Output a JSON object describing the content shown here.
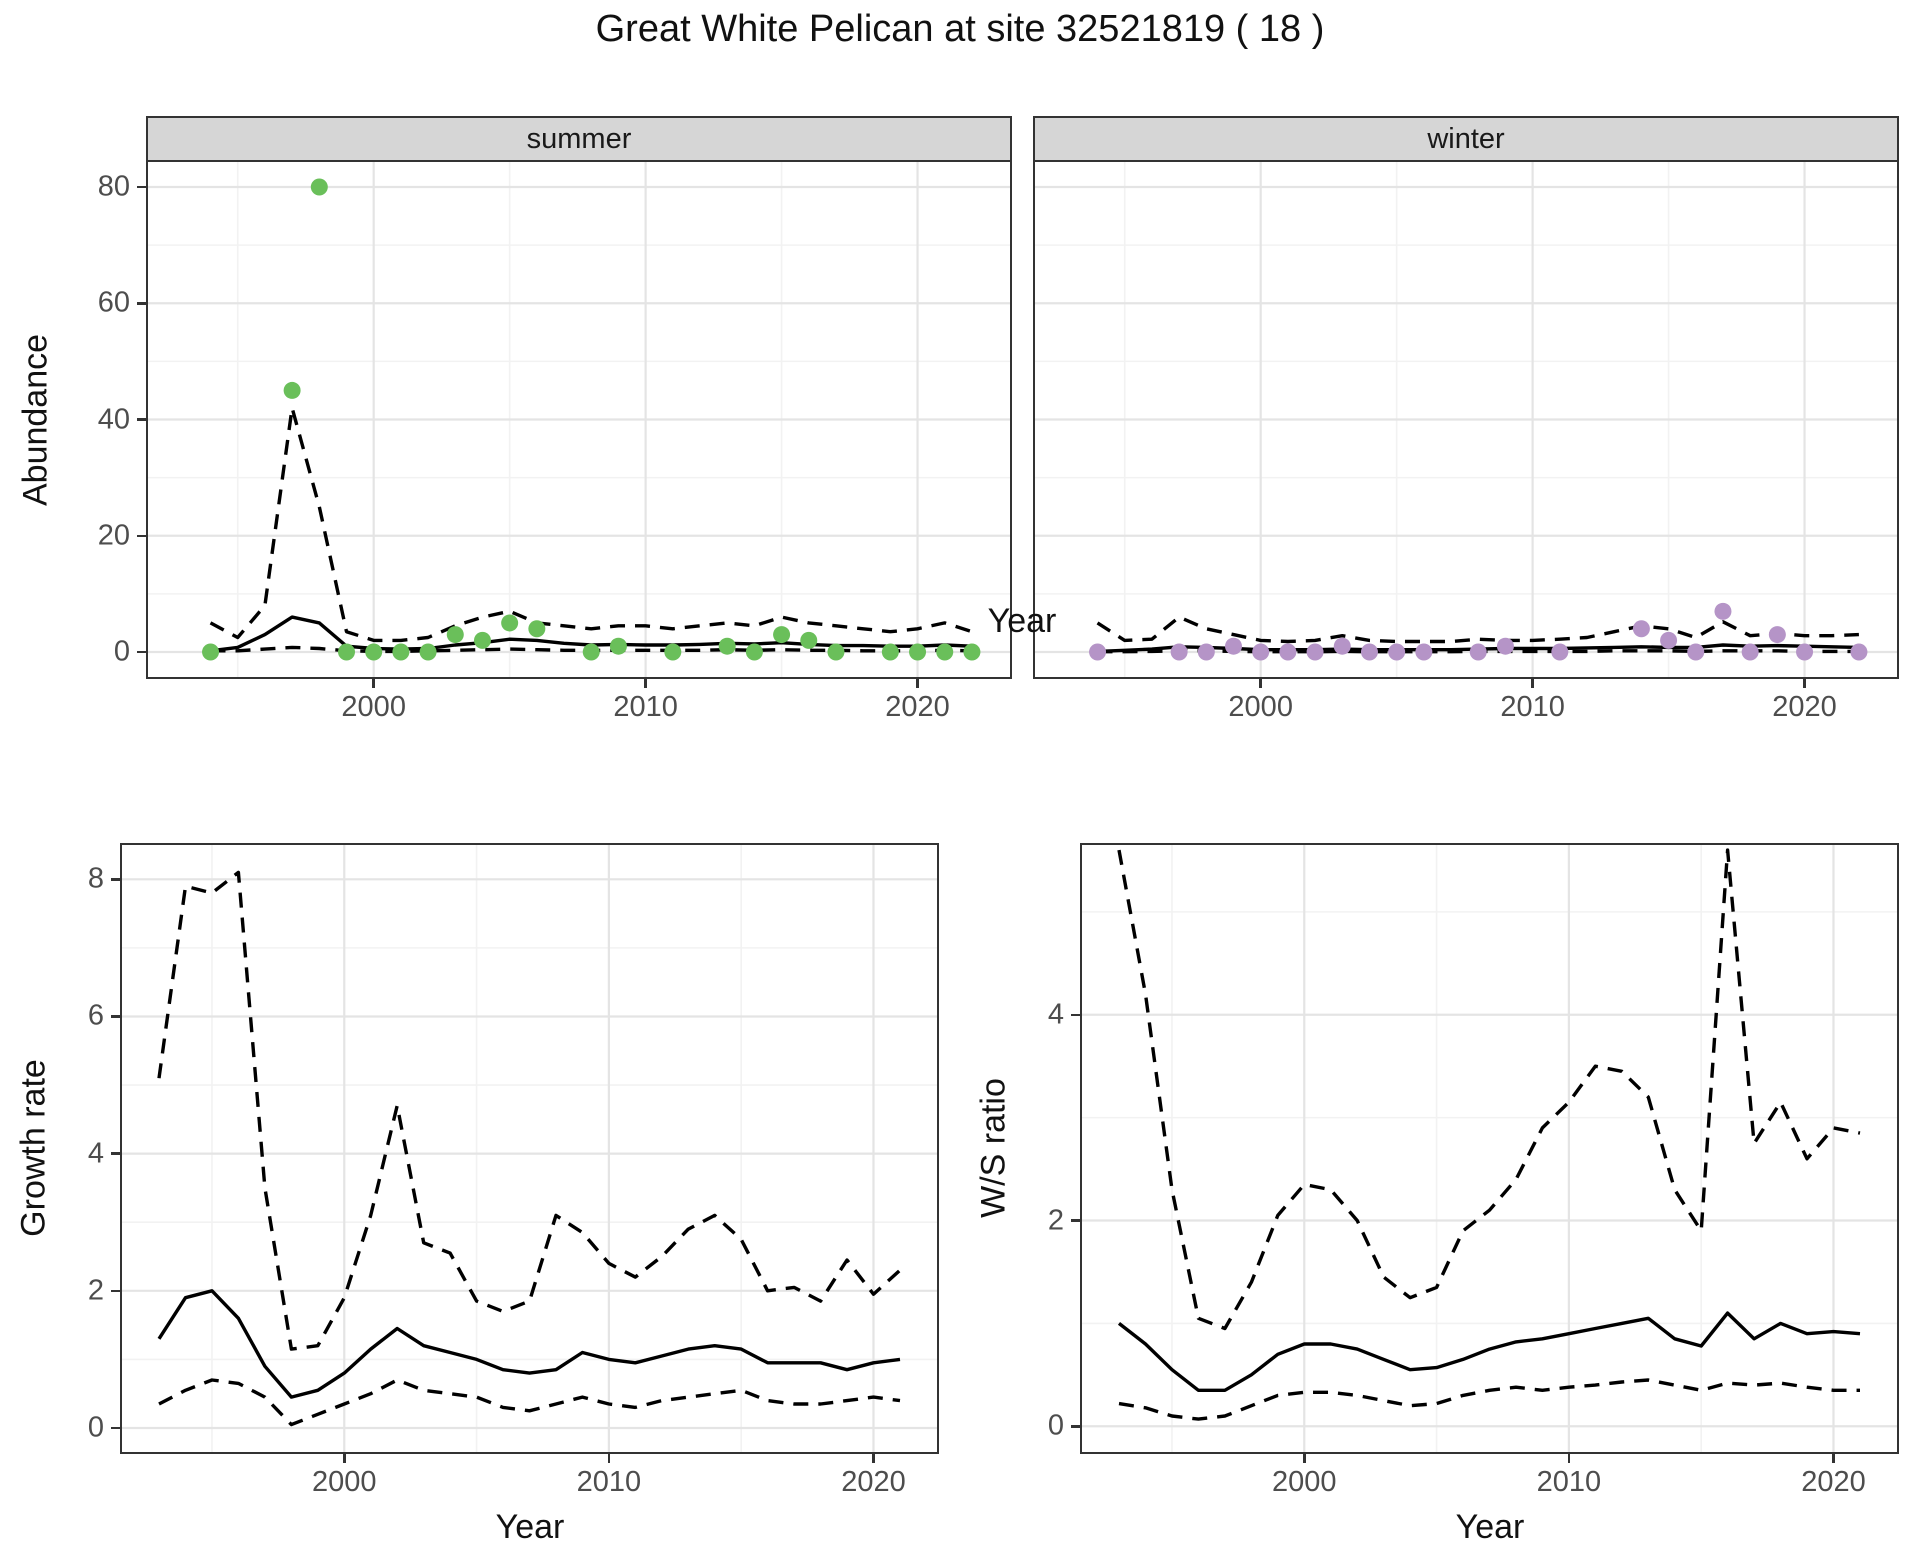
{
  "title": "Great White Pelican at site 32521819 ( 18 )",
  "facets": {
    "summer": "summer",
    "winter": "winter"
  },
  "colors": {
    "summer_point": "#6abf5a",
    "winter_point": "#b594c7",
    "line": "#000000",
    "strip_bg": "#d6d6d6",
    "grid_major": "#e4e4e4",
    "grid_minor": "#f2f2f2",
    "tick_text": "#4d4d4d"
  },
  "chart_data": [
    {
      "id": "abundance_summer",
      "type": "scatter",
      "facet_label": "summer",
      "xlabel": "Year",
      "ylabel": "Abundance",
      "xticks": [
        2000,
        2010,
        2020
      ],
      "yticks": [
        0,
        20,
        40,
        60,
        80
      ],
      "xlim": [
        1991.7,
        2023.4
      ],
      "ylim": [
        -4.3,
        84.3
      ],
      "legend": "none",
      "grid": "on",
      "point_color": "#6abf5a",
      "points": {
        "years": [
          1994,
          1997,
          1998,
          1999,
          2000,
          2001,
          2002,
          2003,
          2004,
          2005,
          2006,
          2008,
          2009,
          2011,
          2013,
          2014,
          2015,
          2016,
          2017,
          2019,
          2020,
          2021,
          2022
        ],
        "values": [
          0,
          45,
          80,
          0,
          0,
          0,
          0,
          3,
          2,
          5,
          4,
          0,
          1,
          0,
          1,
          0,
          3,
          2,
          0,
          0,
          0,
          0,
          0
        ]
      },
      "mean_line": {
        "year_start": 1994,
        "values": [
          0.2,
          0.8,
          3,
          6,
          5,
          1,
          0.6,
          0.5,
          0.6,
          1.2,
          1.6,
          2.2,
          2,
          1.5,
          1.2,
          1.3,
          1.2,
          1.2,
          1.3,
          1.5,
          1.4,
          1.6,
          1.3,
          1.1,
          1.1,
          1,
          1,
          1.2,
          1
        ]
      },
      "upper_ci": {
        "year_start": 1994,
        "values": [
          5,
          2.5,
          8,
          42,
          25,
          3.5,
          2,
          2,
          2.5,
          4.5,
          6,
          7,
          5,
          4.5,
          4,
          4.5,
          4.5,
          4,
          4.5,
          5,
          4.5,
          6,
          5,
          4.5,
          4,
          3.5,
          4,
          5,
          3.5
        ]
      },
      "lower_ci": {
        "year_start": 1994,
        "values": [
          0.2,
          0.2,
          0.5,
          0.8,
          0.6,
          0.2,
          0.1,
          0.1,
          0.2,
          0.3,
          0.4,
          0.5,
          0.4,
          0.3,
          0.3,
          0.3,
          0.3,
          0.3,
          0.3,
          0.4,
          0.3,
          0.4,
          0.3,
          0.3,
          0.2,
          0.2,
          0.2,
          0.3,
          0.2
        ]
      }
    },
    {
      "id": "abundance_winter",
      "type": "scatter",
      "facet_label": "winter",
      "xlabel": "Year",
      "ylabel": "Abundance",
      "xticks": [
        2000,
        2010,
        2020
      ],
      "yticks": [
        0,
        20,
        40,
        60,
        80
      ],
      "xlim": [
        1991.7,
        2023.4
      ],
      "ylim": [
        -4.3,
        84.3
      ],
      "legend": "none",
      "grid": "on",
      "point_color": "#b594c7",
      "points": {
        "years": [
          1994,
          1997,
          1998,
          1999,
          2000,
          2001,
          2002,
          2003,
          2004,
          2005,
          2006,
          2008,
          2009,
          2011,
          2014,
          2015,
          2016,
          2017,
          2018,
          2019,
          2020,
          2022
        ],
        "values": [
          0,
          0,
          0,
          1,
          0,
          0,
          0,
          1,
          0,
          0,
          0,
          0,
          1,
          0,
          4,
          2,
          0,
          7,
          0,
          3,
          0,
          0
        ]
      },
      "mean_line": {
        "year_start": 1994,
        "values": [
          0.1,
          0.3,
          0.5,
          0.9,
          0.8,
          0.6,
          0.4,
          0.4,
          0.4,
          0.5,
          0.4,
          0.4,
          0.4,
          0.4,
          0.5,
          0.6,
          0.6,
          0.6,
          0.7,
          0.8,
          0.9,
          0.8,
          0.8,
          1.2,
          1,
          1.1,
          1,
          0.9,
          0.8
        ]
      },
      "upper_ci": {
        "year_start": 1994,
        "values": [
          5,
          2,
          2.2,
          6,
          4,
          3,
          2,
          1.8,
          2,
          2.8,
          2,
          1.8,
          1.8,
          1.8,
          2.2,
          2,
          2,
          2.2,
          2.5,
          3.5,
          4.5,
          4,
          2.5,
          5.2,
          2.8,
          3.2,
          2.8,
          2.8,
          3
        ]
      },
      "lower_ci": {
        "year_start": 1994,
        "values": [
          0.05,
          0.05,
          0.1,
          0.2,
          0.2,
          0.1,
          0.05,
          0.05,
          0.05,
          0.1,
          0.05,
          0.05,
          0.05,
          0.05,
          0.1,
          0.1,
          0.1,
          0.1,
          0.1,
          0.2,
          0.2,
          0.2,
          0.1,
          0.2,
          0.2,
          0.2,
          0.1,
          0.1,
          0.1
        ]
      }
    },
    {
      "id": "growth_rate",
      "type": "line",
      "xlabel": "Year",
      "ylabel": "Growth rate",
      "xticks": [
        2000,
        2010,
        2020
      ],
      "yticks": [
        0,
        2,
        4,
        6,
        8
      ],
      "xlim": [
        1991.6,
        2022.4
      ],
      "ylim": [
        -0.35,
        8.5
      ],
      "legend": "none",
      "grid": "on",
      "mean_line": {
        "year_start": 1993,
        "values": [
          1.3,
          1.9,
          2.0,
          1.6,
          0.9,
          0.45,
          0.55,
          0.8,
          1.15,
          1.45,
          1.2,
          1.1,
          1.0,
          0.85,
          0.8,
          0.85,
          1.1,
          1.0,
          0.95,
          1.05,
          1.15,
          1.2,
          1.15,
          0.95,
          0.95,
          0.95,
          0.85,
          0.95,
          1.0
        ]
      },
      "upper_ci": {
        "year_start": 1993,
        "values": [
          5.1,
          7.9,
          7.8,
          8.1,
          3.5,
          1.15,
          1.2,
          1.9,
          3.1,
          4.7,
          2.7,
          2.55,
          1.85,
          1.7,
          1.85,
          3.1,
          2.85,
          2.4,
          2.2,
          2.5,
          2.9,
          3.1,
          2.75,
          2.0,
          2.05,
          1.85,
          2.45,
          1.95,
          2.3
        ]
      },
      "lower_ci": {
        "year_start": 1993,
        "values": [
          0.35,
          0.55,
          0.7,
          0.65,
          0.45,
          0.05,
          0.2,
          0.35,
          0.5,
          0.7,
          0.55,
          0.5,
          0.45,
          0.3,
          0.25,
          0.35,
          0.45,
          0.35,
          0.3,
          0.4,
          0.45,
          0.5,
          0.55,
          0.4,
          0.35,
          0.35,
          0.4,
          0.45,
          0.4
        ]
      }
    },
    {
      "id": "ws_ratio",
      "type": "line",
      "xlabel": "Year",
      "ylabel": "W/S ratio",
      "xticks": [
        2000,
        2010,
        2020
      ],
      "yticks": [
        0,
        2,
        4
      ],
      "xlim": [
        1991.6,
        2022.4
      ],
      "ylim": [
        -0.25,
        5.65
      ],
      "legend": "none",
      "grid": "on",
      "mean_line": {
        "year_start": 1993,
        "values": [
          1.0,
          0.8,
          0.55,
          0.35,
          0.35,
          0.5,
          0.7,
          0.8,
          0.8,
          0.75,
          0.65,
          0.55,
          0.57,
          0.65,
          0.75,
          0.82,
          0.85,
          0.9,
          0.95,
          1.0,
          1.05,
          0.85,
          0.78,
          1.1,
          0.85,
          1.0,
          0.9,
          0.92,
          0.9
        ]
      },
      "upper_ci": {
        "year_start": 1993,
        "values": [
          5.6,
          4.2,
          2.3,
          1.05,
          0.95,
          1.4,
          2.05,
          2.35,
          2.3,
          2.0,
          1.45,
          1.25,
          1.35,
          1.9,
          2.1,
          2.4,
          2.9,
          3.15,
          3.5,
          3.45,
          3.2,
          2.3,
          1.9,
          5.6,
          2.75,
          3.15,
          2.6,
          2.9,
          2.85
        ]
      },
      "lower_ci": {
        "year_start": 1993,
        "values": [
          0.22,
          0.18,
          0.1,
          0.07,
          0.1,
          0.2,
          0.3,
          0.33,
          0.33,
          0.3,
          0.25,
          0.2,
          0.22,
          0.3,
          0.35,
          0.38,
          0.35,
          0.38,
          0.4,
          0.43,
          0.45,
          0.4,
          0.35,
          0.42,
          0.4,
          0.42,
          0.38,
          0.35,
          0.35
        ]
      }
    }
  ]
}
